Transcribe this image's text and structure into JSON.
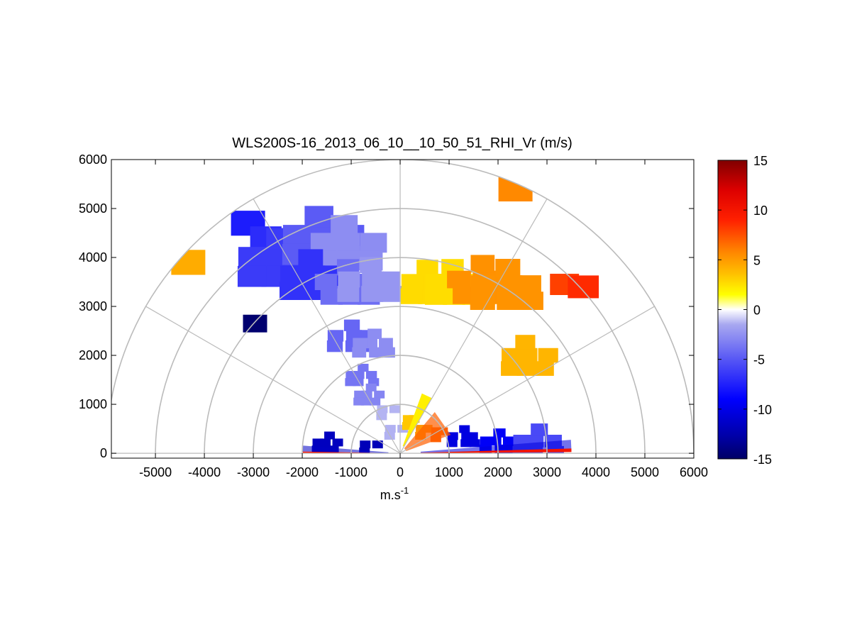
{
  "chart_data": {
    "type": "heatmap",
    "title": "WLS200S-16_2013_06_10__10_50_51_RHI_Vr (m/s)",
    "xlabel": "m.s",
    "xlabel_sup": "-1",
    "ylabel": "",
    "xlim": [
      -5900,
      6000
    ],
    "ylim": [
      -100,
      6000
    ],
    "x_ticks": [
      -5000,
      -4000,
      -3000,
      -2000,
      -1000,
      0,
      1000,
      2000,
      3000,
      4000,
      5000,
      6000
    ],
    "x_tick_labels": [
      "-5000",
      "-4000",
      "-3000",
      "-2000",
      "-1000",
      "0",
      "1000",
      "2000",
      "3000",
      "4000",
      "5000",
      "6000"
    ],
    "y_ticks": [
      0,
      1000,
      2000,
      3000,
      4000,
      5000,
      6000
    ],
    "y_tick_labels": [
      "0",
      "1000",
      "2000",
      "3000",
      "4000",
      "5000",
      "6000"
    ],
    "polar_grid": {
      "range_rings": [
        1000,
        2000,
        3000,
        4000,
        5000,
        6000
      ],
      "angles_deg": [
        0,
        30,
        60,
        90,
        120,
        150,
        180
      ]
    },
    "colorbar": {
      "range": [
        -15,
        15
      ],
      "ticks": [
        -15,
        -10,
        -5,
        0,
        5,
        10,
        15
      ],
      "tick_labels": [
        "-15",
        "-10",
        "-5",
        "0",
        "5",
        "10",
        "15"
      ],
      "colormap": "blue-white-red (jet-like)"
    },
    "regions": [
      {
        "x": -3050,
        "y": 4700,
        "v": -7
      },
      {
        "x": -2700,
        "y": 4400,
        "v": -7
      },
      {
        "x": -2500,
        "y": 4000,
        "v": -7
      },
      {
        "x": -1600,
        "y": 4450,
        "v": -4.5
      },
      {
        "x": -1100,
        "y": 4300,
        "v": -3
      },
      {
        "x": -1800,
        "y": 3650,
        "v": -6
      },
      {
        "x": -1050,
        "y": 3500,
        "v": -4
      },
      {
        "x": -600,
        "y": 3550,
        "v": -3
      },
      {
        "x": -1000,
        "y": 2400,
        "v": -4
      },
      {
        "x": -550,
        "y": 2250,
        "v": -3
      },
      {
        "x": -800,
        "y": 1600,
        "v": -3
      },
      {
        "x": -650,
        "y": 1200,
        "v": -3
      },
      {
        "x": -350,
        "y": 900,
        "v": -2
      },
      {
        "x": -200,
        "y": 500,
        "v": -1
      },
      {
        "x": 150,
        "y": 700,
        "v": 3
      },
      {
        "x": 400,
        "y": 500,
        "v": 6
      },
      {
        "x": 700,
        "y": 450,
        "v": 7
      },
      {
        "x": 1300,
        "y": 350,
        "v": -11
      },
      {
        "x": 2000,
        "y": 250,
        "v": -9
      },
      {
        "x": 2800,
        "y": 250,
        "v": -6
      },
      {
        "x": -1500,
        "y": 220,
        "v": -11
      },
      {
        "x": -700,
        "y": 180,
        "v": -12
      },
      {
        "x": 600,
        "y": 3500,
        "v": 2
      },
      {
        "x": 1100,
        "y": 3500,
        "v": 3
      },
      {
        "x": 1700,
        "y": 3550,
        "v": 5
      },
      {
        "x": 2200,
        "y": 3450,
        "v": 6
      },
      {
        "x": 3300,
        "y": 3450,
        "v": 8
      },
      {
        "x": 3800,
        "y": 3400,
        "v": 8
      },
      {
        "x": 2400,
        "y": 5400,
        "v": 6
      },
      {
        "x": -4300,
        "y": 3900,
        "v": 4
      },
      {
        "x": -2950,
        "y": 2650,
        "v": -14
      },
      {
        "x": 2600,
        "y": 2000,
        "v": 4
      }
    ]
  }
}
